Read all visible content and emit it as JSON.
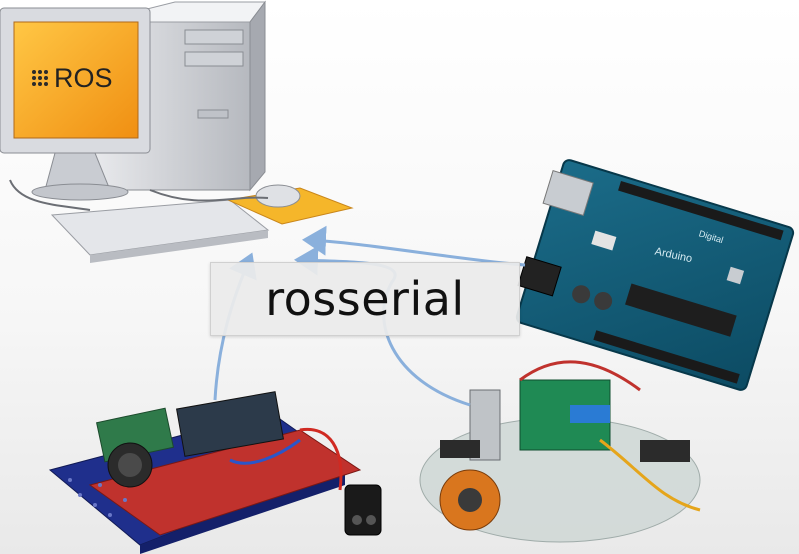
{
  "center_label": "rosserial",
  "computer": {
    "screen_logo_text": "ROS",
    "screen_color": "#f7a81d"
  },
  "arduino_board": {
    "board_markings": [
      "Arduino",
      "Digital"
    ]
  },
  "colors": {
    "arrow": "#8ab0dc",
    "label_background": "#ebebeb"
  }
}
